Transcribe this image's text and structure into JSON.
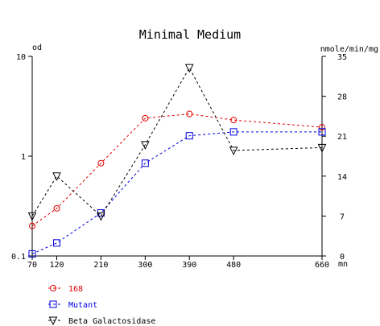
{
  "chart_data": {
    "type": "line",
    "title": "Minimal Medium",
    "xlabel": "mn",
    "ylabel_left": "od",
    "ylabel_right": "nmole/min/mg",
    "x": [
      70,
      120,
      210,
      300,
      390,
      480,
      660
    ],
    "x_ticks": [
      "70",
      "120",
      "210",
      "300",
      "390",
      "480",
      "660"
    ],
    "xlim": [
      70,
      660
    ],
    "ylim_left": [
      0.1,
      10
    ],
    "y_left_scale": "log",
    "y_left_ticks": [
      "0.1",
      "1",
      "10"
    ],
    "ylim_right": [
      0,
      35
    ],
    "y_right_ticks": [
      "0",
      "7",
      "14",
      "21",
      "28",
      "35"
    ],
    "grid": false,
    "legend_position": "bottom-left",
    "series": [
      {
        "name": "168",
        "axis": "left",
        "marker": "circle",
        "color": "#e00000",
        "values": [
          0.2,
          0.3,
          0.85,
          2.4,
          2.65,
          2.3,
          1.95
        ]
      },
      {
        "name": "Mutant",
        "axis": "left",
        "marker": "square",
        "color": "#0000e0",
        "values": [
          0.105,
          0.135,
          0.27,
          0.85,
          1.6,
          1.75,
          1.75
        ]
      },
      {
        "name": "Beta Galactosidase",
        "axis": "right",
        "marker": "triangle-down",
        "color": "#000000",
        "values": [
          7,
          14,
          7,
          19.5,
          33,
          18.5,
          19
        ]
      }
    ]
  }
}
